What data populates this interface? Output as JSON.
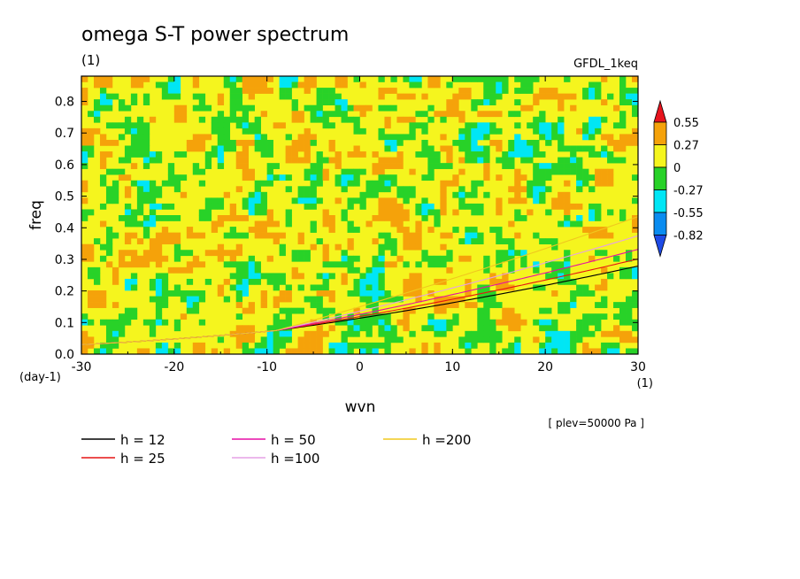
{
  "chart_data": {
    "type": "heatmap",
    "title": "omega S-T power spectrum",
    "units_label": "(1)",
    "model_label": "GFDL_1keq",
    "xlabel": "wvn",
    "ylabel": "freq",
    "x_unit": "(1)",
    "y_unit": "(day-1)",
    "level_label": "[ plev=50000 Pa ]",
    "xlim": [
      -30,
      30
    ],
    "ylim": [
      0,
      0.88
    ],
    "xticks": [
      "-30",
      "-20",
      "-10",
      "0",
      "10",
      "20",
      "30"
    ],
    "yticks": [
      "0.0",
      "0.1",
      "0.2",
      "0.3",
      "0.4",
      "0.5",
      "0.6",
      "0.7",
      "0.8"
    ],
    "colorbar": {
      "levels": [
        "0.55",
        "0.27",
        "0",
        "-0.27",
        "-0.55",
        "-0.82"
      ],
      "colors": [
        "#e8141e",
        "#f5a20a",
        "#f5f51e",
        "#28d228",
        "#00e6f5",
        "#0a8cf0",
        "#1e4be6"
      ]
    },
    "series": [
      {
        "name": "h = 12",
        "color": "#000000",
        "h": 12
      },
      {
        "name": "h = 25",
        "color": "#e61414",
        "h": 25
      },
      {
        "name": "h = 50",
        "color": "#e60fa5",
        "h": 50
      },
      {
        "name": "h =100",
        "color": "#e6a0e6",
        "h": 100
      },
      {
        "name": "h =200",
        "color": "#f0c81e",
        "h": 200
      }
    ]
  }
}
